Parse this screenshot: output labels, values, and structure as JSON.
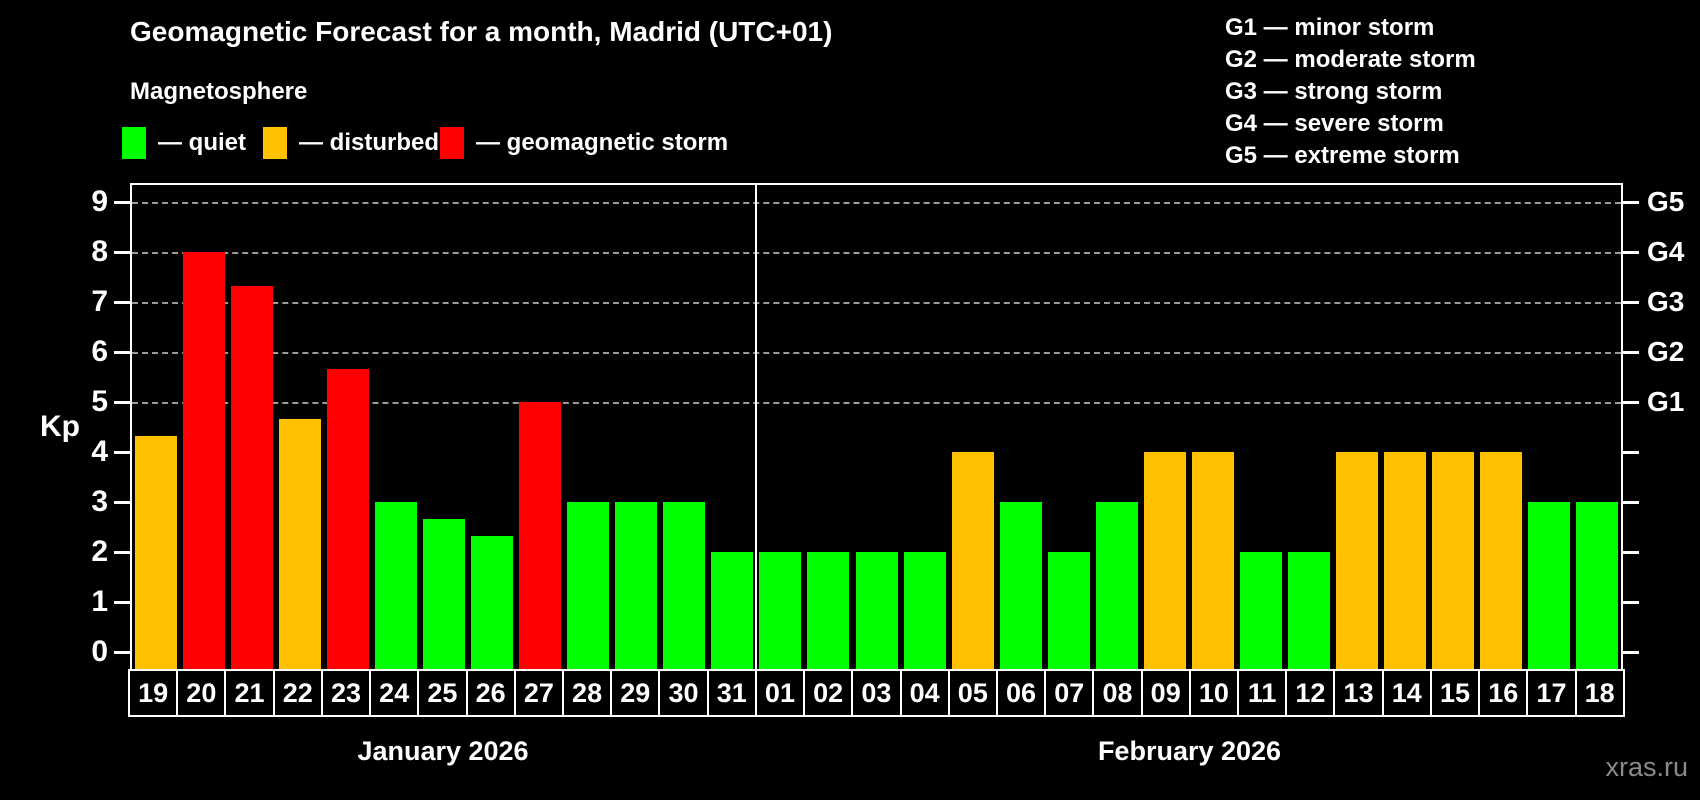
{
  "title": "Geomagnetic Forecast for a month, Madrid (UTC+01)",
  "subtitle": "Magnetosphere",
  "legend": {
    "items": [
      {
        "label": "— quiet",
        "status": "quiet",
        "color": "#00ff00"
      },
      {
        "label": "— disturbed",
        "status": "disturbed",
        "color": "#ffc000"
      },
      {
        "label": "— geomagnetic storm",
        "status": "storm",
        "color": "#ff0000"
      }
    ]
  },
  "g_legend": [
    "G1 — minor storm",
    "G2 — moderate storm",
    "G3 — strong storm",
    "G4 — severe storm",
    "G5 — extreme storm"
  ],
  "axes": {
    "y_label": "Kp",
    "y_ticks": [
      0,
      1,
      2,
      3,
      4,
      5,
      6,
      7,
      8,
      9
    ],
    "right_labels": [
      {
        "kp": 5,
        "label": "G1"
      },
      {
        "kp": 6,
        "label": "G2"
      },
      {
        "kp": 7,
        "label": "G3"
      },
      {
        "kp": 8,
        "label": "G4"
      },
      {
        "kp": 9,
        "label": "G5"
      }
    ]
  },
  "months": [
    {
      "label": "January 2026",
      "days": 13
    },
    {
      "label": "February 2026",
      "days": 18
    }
  ],
  "watermark": "xras.ru",
  "status_colors": {
    "quiet": "#00ff00",
    "disturbed": "#ffc000",
    "storm": "#ff0000"
  },
  "chart_data": {
    "type": "bar",
    "title": "Geomagnetic Forecast for a month, Madrid (UTC+01)",
    "xlabel": "",
    "ylabel": "Kp",
    "ylim": [
      0,
      9
    ],
    "grid": "dashed horizontal at Kp 5-9 (G1-G5)",
    "legend_position": "top",
    "categories": [
      "19",
      "20",
      "21",
      "22",
      "23",
      "24",
      "25",
      "26",
      "27",
      "28",
      "29",
      "30",
      "31",
      "01",
      "02",
      "03",
      "04",
      "05",
      "06",
      "07",
      "08",
      "09",
      "10",
      "11",
      "12",
      "13",
      "14",
      "15",
      "16",
      "17",
      "18"
    ],
    "values": [
      4.33,
      8,
      7.33,
      4.67,
      5.67,
      3,
      2.67,
      2.33,
      5,
      3,
      3,
      3,
      2,
      2,
      2,
      2,
      2,
      4,
      3,
      2,
      3,
      4,
      4,
      2,
      2,
      4,
      4,
      4,
      4,
      3,
      3
    ],
    "statuses": [
      "disturbed",
      "storm",
      "storm",
      "disturbed",
      "storm",
      "quiet",
      "quiet",
      "quiet",
      "storm",
      "quiet",
      "quiet",
      "quiet",
      "quiet",
      "quiet",
      "quiet",
      "quiet",
      "quiet",
      "disturbed",
      "quiet",
      "quiet",
      "quiet",
      "disturbed",
      "disturbed",
      "quiet",
      "quiet",
      "disturbed",
      "disturbed",
      "disturbed",
      "disturbed",
      "quiet",
      "quiet"
    ]
  }
}
